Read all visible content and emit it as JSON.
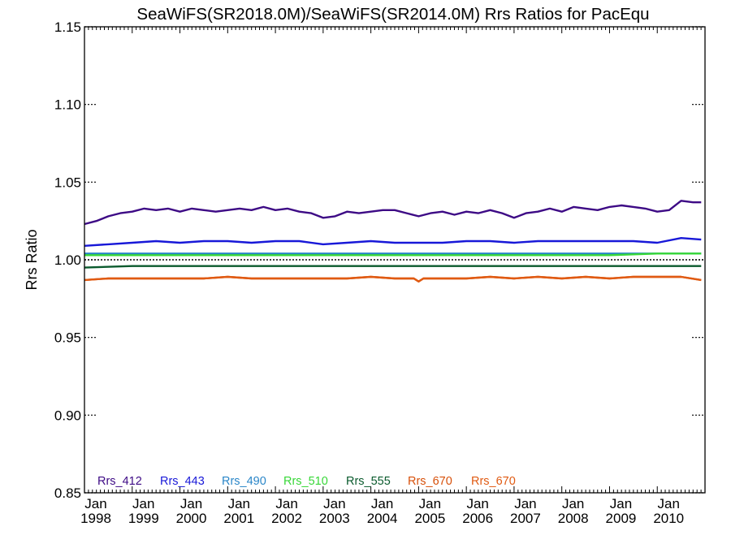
{
  "chart_data": {
    "type": "line",
    "title": "SeaWiFS(SR2018.0M)/SeaWiFS(SR2014.0M)  Rrs Ratios for PacEqu",
    "xlabel": "",
    "ylabel": "Rrs Ratio",
    "ylim": [
      0.85,
      1.15
    ],
    "xlim": [
      1998.0,
      2011.0
    ],
    "grid": false,
    "legend_position": "bottom-left inside",
    "y_ticks": [
      "0.85",
      "0.90",
      "0.95",
      "1.00",
      "1.05",
      "1.10",
      "1.15"
    ],
    "x_ticks": [
      {
        "month": "Jan",
        "year": "1998"
      },
      {
        "month": "Jan",
        "year": "1999"
      },
      {
        "month": "Jan",
        "year": "2000"
      },
      {
        "month": "Jan",
        "year": "2001"
      },
      {
        "month": "Jan",
        "year": "2002"
      },
      {
        "month": "Jan",
        "year": "2003"
      },
      {
        "month": "Jan",
        "year": "2004"
      },
      {
        "month": "Jan",
        "year": "2005"
      },
      {
        "month": "Jan",
        "year": "2006"
      },
      {
        "month": "Jan",
        "year": "2007"
      },
      {
        "month": "Jan",
        "year": "2008"
      },
      {
        "month": "Jan",
        "year": "2009"
      },
      {
        "month": "Jan",
        "year": "2010"
      }
    ],
    "reference_line": {
      "y": 1.0,
      "style": "dotted",
      "color": "#000000"
    },
    "x_units": "decimal year",
    "series": [
      {
        "name": "Rrs_412",
        "color": "#3d0a85",
        "x": [
          1998.0,
          1998.25,
          1998.5,
          1998.75,
          1999.0,
          1999.25,
          1999.5,
          1999.75,
          2000.0,
          2000.25,
          2000.5,
          2000.75,
          2001.0,
          2001.25,
          2001.5,
          2001.75,
          2002.0,
          2002.25,
          2002.5,
          2002.75,
          2003.0,
          2003.25,
          2003.5,
          2003.75,
          2004.0,
          2004.25,
          2004.5,
          2004.75,
          2005.0,
          2005.25,
          2005.5,
          2005.75,
          2006.0,
          2006.25,
          2006.5,
          2006.75,
          2007.0,
          2007.25,
          2007.5,
          2007.75,
          2008.0,
          2008.25,
          2008.5,
          2008.75,
          2009.0,
          2009.25,
          2009.5,
          2009.75,
          2010.0,
          2010.25,
          2010.5,
          2010.75,
          2010.92
        ],
        "values": [
          1.023,
          1.025,
          1.028,
          1.03,
          1.031,
          1.033,
          1.032,
          1.033,
          1.031,
          1.033,
          1.032,
          1.031,
          1.032,
          1.033,
          1.032,
          1.034,
          1.032,
          1.033,
          1.031,
          1.03,
          1.027,
          1.028,
          1.031,
          1.03,
          1.031,
          1.032,
          1.032,
          1.03,
          1.028,
          1.03,
          1.031,
          1.029,
          1.031,
          1.03,
          1.032,
          1.03,
          1.027,
          1.03,
          1.031,
          1.033,
          1.031,
          1.034,
          1.033,
          1.032,
          1.034,
          1.035,
          1.034,
          1.033,
          1.031,
          1.032,
          1.038,
          1.037,
          1.037
        ]
      },
      {
        "name": "Rrs_443",
        "color": "#1818d8",
        "x": [
          1998.0,
          1998.5,
          1999.0,
          1999.5,
          2000.0,
          2000.5,
          2001.0,
          2001.5,
          2002.0,
          2002.5,
          2003.0,
          2003.5,
          2004.0,
          2004.5,
          2005.0,
          2005.5,
          2006.0,
          2006.5,
          2007.0,
          2007.5,
          2008.0,
          2008.5,
          2009.0,
          2009.5,
          2010.0,
          2010.5,
          2010.92
        ],
        "values": [
          1.009,
          1.01,
          1.011,
          1.012,
          1.011,
          1.012,
          1.012,
          1.011,
          1.012,
          1.012,
          1.01,
          1.011,
          1.012,
          1.011,
          1.011,
          1.011,
          1.012,
          1.012,
          1.011,
          1.012,
          1.012,
          1.012,
          1.012,
          1.012,
          1.011,
          1.014,
          1.013
        ]
      },
      {
        "name": "Rrs_490",
        "color": "#2a86c8",
        "x": [
          1998.0,
          2000.0,
          2002.0,
          2004.0,
          2006.0,
          2008.0,
          2010.0,
          2010.92
        ],
        "values": [
          1.004,
          1.004,
          1.004,
          1.004,
          1.004,
          1.004,
          1.004,
          1.004
        ]
      },
      {
        "name": "Rrs_510",
        "color": "#37d737",
        "x": [
          1998.0,
          1999.0,
          2000.0,
          2001.0,
          2002.0,
          2003.0,
          2004.0,
          2005.0,
          2006.0,
          2007.0,
          2008.0,
          2009.0,
          2010.0,
          2010.92
        ],
        "values": [
          1.003,
          1.003,
          1.003,
          1.003,
          1.003,
          1.003,
          1.003,
          1.003,
          1.003,
          1.003,
          1.003,
          1.003,
          1.004,
          1.004
        ]
      },
      {
        "name": "Rrs_555",
        "color": "#0a5a2d",
        "x": [
          1998.0,
          1999.0,
          2000.0,
          2001.0,
          2002.0,
          2003.0,
          2004.0,
          2005.0,
          2006.0,
          2007.0,
          2008.0,
          2009.0,
          2010.0,
          2010.92
        ],
        "values": [
          0.995,
          0.996,
          0.996,
          0.996,
          0.996,
          0.996,
          0.996,
          0.996,
          0.996,
          0.996,
          0.996,
          0.996,
          0.996,
          0.996
        ]
      },
      {
        "name": "Rrs_670",
        "color": "#d7500a",
        "x": [
          1998.0,
          1998.5,
          1999.0,
          1999.5,
          2000.0,
          2000.5,
          2001.0,
          2001.5,
          2002.0,
          2002.5,
          2003.0,
          2003.5,
          2004.0,
          2004.5,
          2004.9,
          2005.0,
          2005.1,
          2005.5,
          2006.0,
          2006.5,
          2007.0,
          2007.5,
          2008.0,
          2008.5,
          2009.0,
          2009.5,
          2010.0,
          2010.5,
          2010.92
        ],
        "values": [
          0.987,
          0.988,
          0.988,
          0.988,
          0.988,
          0.988,
          0.989,
          0.988,
          0.988,
          0.988,
          0.988,
          0.988,
          0.989,
          0.988,
          0.988,
          0.986,
          0.988,
          0.988,
          0.988,
          0.989,
          0.988,
          0.989,
          0.988,
          0.989,
          0.988,
          0.989,
          0.989,
          0.989,
          0.987
        ]
      },
      {
        "name": "Rrs_670",
        "color": "#e05a12",
        "x": [
          1998.0,
          1998.5,
          1999.0,
          1999.5,
          2000.0,
          2000.5,
          2001.0,
          2001.5,
          2002.0,
          2002.5,
          2003.0,
          2003.5,
          2004.0,
          2004.5,
          2004.9,
          2005.0,
          2005.1,
          2005.5,
          2006.0,
          2006.5,
          2007.0,
          2007.5,
          2008.0,
          2008.5,
          2009.0,
          2009.5,
          2010.0,
          2010.5,
          2010.92
        ],
        "values": [
          0.987,
          0.988,
          0.988,
          0.988,
          0.988,
          0.988,
          0.989,
          0.988,
          0.988,
          0.988,
          0.988,
          0.988,
          0.989,
          0.988,
          0.988,
          0.986,
          0.988,
          0.988,
          0.988,
          0.989,
          0.988,
          0.989,
          0.988,
          0.989,
          0.988,
          0.989,
          0.989,
          0.989,
          0.987
        ]
      }
    ]
  }
}
